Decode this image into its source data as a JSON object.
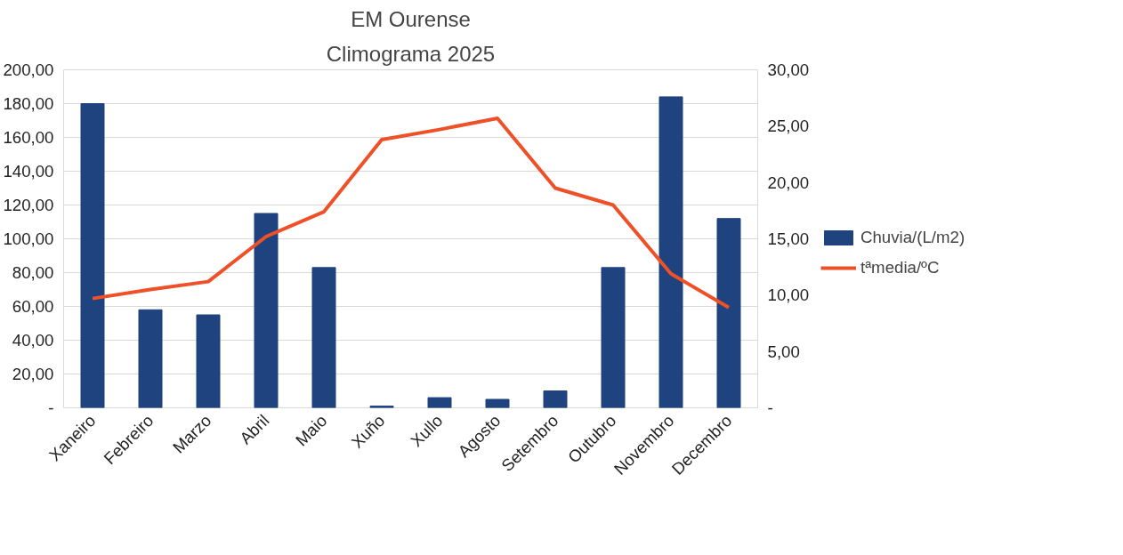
{
  "chart_data": {
    "type": "bar",
    "title": "EM Ourense",
    "subtitle": "Climograma 2025",
    "categories": [
      "Xaneiro",
      "Febreiro",
      "Marzo",
      "Abril",
      "Maio",
      "Xuño",
      "Xullo",
      "Agosto",
      "Setembro",
      "Outubro",
      "Novembro",
      "Decembro"
    ],
    "series": [
      {
        "name": "Chuvia/(L/m2)",
        "color": "#1f437f",
        "values": [
          180,
          58,
          55,
          115,
          83,
          1,
          6,
          5,
          10,
          83,
          184,
          112
        ]
      },
      {
        "name": "tªmedia/ºC",
        "type": "line",
        "axis": "y2",
        "color": "#ee5028",
        "values": [
          9.7,
          10.5,
          11.2,
          15.2,
          17.4,
          23.8,
          24.7,
          25.7,
          19.5,
          18.0,
          11.9,
          8.9
        ]
      }
    ],
    "ylim": [
      0,
      200
    ],
    "yticks": [
      {
        "value": 0,
        "label": "-"
      },
      {
        "value": 20,
        "label": "20,00"
      },
      {
        "value": 40,
        "label": "40,00"
      },
      {
        "value": 60,
        "label": "60,00"
      },
      {
        "value": 80,
        "label": "80,00"
      },
      {
        "value": 100,
        "label": "100,00"
      },
      {
        "value": 120,
        "label": "120,00"
      },
      {
        "value": 140,
        "label": "140,00"
      },
      {
        "value": 160,
        "label": "160,00"
      },
      {
        "value": 180,
        "label": "180,00"
      },
      {
        "value": 200,
        "label": "200,00"
      }
    ],
    "y2lim": [
      0,
      30
    ],
    "y2ticks": [
      {
        "value": 0,
        "label": "-"
      },
      {
        "value": 5,
        "label": "5,00"
      },
      {
        "value": 10,
        "label": "10,00"
      },
      {
        "value": 15,
        "label": "15,00"
      },
      {
        "value": 20,
        "label": "20,00"
      },
      {
        "value": 25,
        "label": "25,00"
      },
      {
        "value": 30,
        "label": "30,00"
      }
    ],
    "grid": "y",
    "legend": "right"
  }
}
